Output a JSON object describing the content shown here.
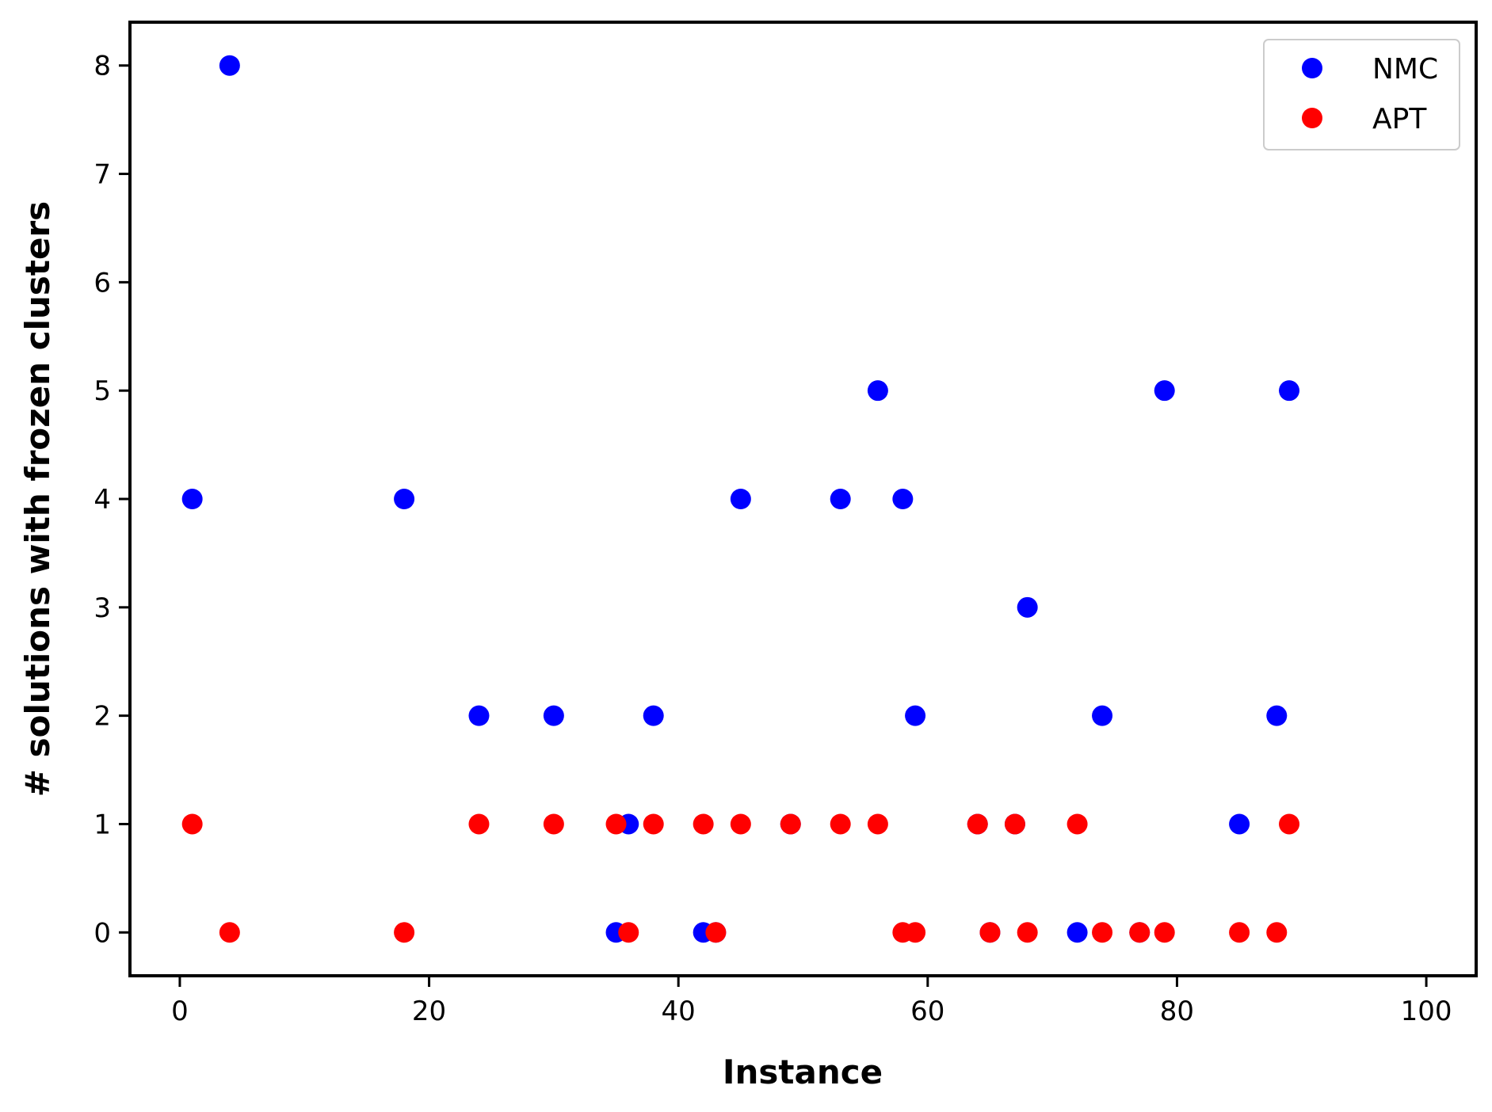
{
  "chart_data": {
    "type": "scatter",
    "title": "",
    "xlabel": "Instance",
    "ylabel": "# solutions with frozen clusters",
    "xlim": [
      -4,
      104
    ],
    "ylim": [
      -0.4,
      8.4
    ],
    "xticks": [
      0,
      20,
      40,
      60,
      80,
      100
    ],
    "yticks": [
      0,
      1,
      2,
      3,
      4,
      5,
      6,
      7,
      8
    ],
    "grid": false,
    "legend_position": "top-right",
    "series": [
      {
        "name": "NMC",
        "color": "#0000ff",
        "points": [
          [
            1,
            4
          ],
          [
            4,
            8
          ],
          [
            18,
            4
          ],
          [
            24,
            2
          ],
          [
            30,
            2
          ],
          [
            35,
            0
          ],
          [
            36,
            1
          ],
          [
            38,
            2
          ],
          [
            42,
            0
          ],
          [
            43,
            0
          ],
          [
            45,
            4
          ],
          [
            49,
            1
          ],
          [
            53,
            4
          ],
          [
            56,
            5
          ],
          [
            58,
            4
          ],
          [
            59,
            2
          ],
          [
            64,
            1
          ],
          [
            65,
            0
          ],
          [
            67,
            1
          ],
          [
            68,
            3
          ],
          [
            72,
            0
          ],
          [
            74,
            2
          ],
          [
            77,
            0
          ],
          [
            79,
            5
          ],
          [
            85,
            1
          ],
          [
            88,
            2
          ],
          [
            89,
            5
          ]
        ]
      },
      {
        "name": "APT",
        "color": "#ff0000",
        "points": [
          [
            1,
            1
          ],
          [
            4,
            0
          ],
          [
            18,
            0
          ],
          [
            24,
            1
          ],
          [
            30,
            1
          ],
          [
            35,
            1
          ],
          [
            36,
            0
          ],
          [
            38,
            1
          ],
          [
            42,
            1
          ],
          [
            43,
            0
          ],
          [
            45,
            1
          ],
          [
            49,
            1
          ],
          [
            53,
            1
          ],
          [
            56,
            1
          ],
          [
            58,
            0
          ],
          [
            59,
            0
          ],
          [
            64,
            1
          ],
          [
            65,
            0
          ],
          [
            67,
            1
          ],
          [
            68,
            0
          ],
          [
            72,
            1
          ],
          [
            74,
            0
          ],
          [
            77,
            0
          ],
          [
            79,
            0
          ],
          [
            85,
            0
          ],
          [
            88,
            0
          ],
          [
            89,
            1
          ]
        ]
      }
    ]
  }
}
